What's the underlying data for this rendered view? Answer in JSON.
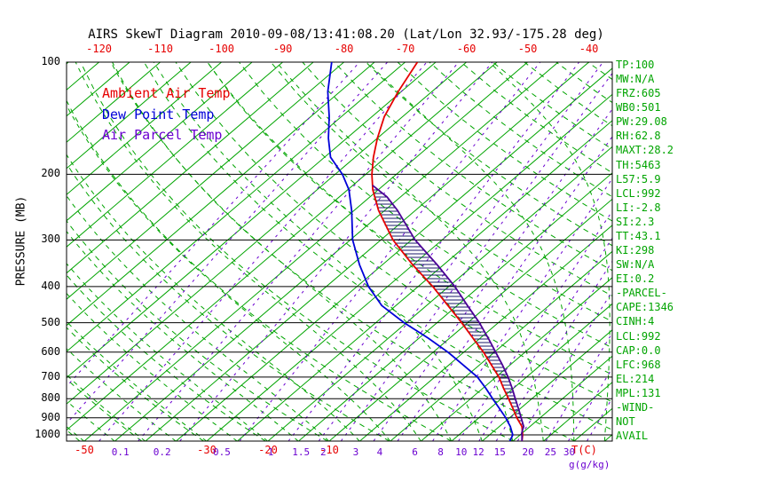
{
  "title": "AIRS SkewT Diagram 2010-09-08/13:41:08.20 (Lat/Lon 32.93/-175.28 deg)",
  "colors": {
    "grid_green": "#00a400",
    "temp_red": "#e60000",
    "dew_blue": "#0000d8",
    "parcel_purple": "#4b0096",
    "mixing_violet": "#6a00d0",
    "axis_black": "#000000",
    "hatch": "#181868"
  },
  "legend": [
    {
      "label": "Ambient Air Temp",
      "color": "#e60000"
    },
    {
      "label": "Dew Point Temp",
      "color": "#0000d8"
    },
    {
      "label": "Air Parcel Temp",
      "color": "#6a00d0"
    }
  ],
  "axes": {
    "pressure_axis_label": "PRESSURE (MB)",
    "pressure_ticks": [
      100,
      200,
      300,
      400,
      500,
      600,
      700,
      800,
      900,
      1000
    ],
    "top_temp_ticks": [
      -120,
      -110,
      -100,
      -90,
      -80,
      -70,
      -60,
      -50,
      -40
    ],
    "bottom_temp_ticks": [
      -50,
      -30,
      -20,
      -10
    ],
    "temp_unit_label": "T(C)",
    "mixing_ratio_tick_labels": [
      "0.1",
      "0.2",
      "0.5",
      "1",
      "1.5",
      "2",
      "3",
      "4",
      "6",
      "8",
      "10",
      "12",
      "15",
      "20",
      "25",
      "30"
    ],
    "mixing_ratio_unit_label": "g(g/kg)"
  },
  "stats_panel": [
    "TP:100",
    "MW:N/A",
    "FRZ:605",
    "WB0:501",
    "PW:29.08",
    "RH:62.8",
    "MAXT:28.2",
    "TH:5463",
    "L57:5.9",
    "LCL:992",
    "LI:-2.8",
    "SI:2.3",
    "TT:43.1",
    "KI:298",
    "SW:N/A",
    "EI:0.2",
    "-PARCEL-",
    "CAPE:1346",
    "CINH:4",
    "LCL:992",
    "CAP:0.0",
    "LFC:968",
    "EL:214",
    "MPL:131",
    "-WIND-",
    "NOT",
    "AVAIL"
  ],
  "chart_data": {
    "type": "line",
    "subtype": "skew-t-log-p",
    "title": "AIRS SkewT Diagram 2010-09-08/13:41:08.20 (Lat/Lon 32.93/-175.28 deg)",
    "xlabel": "T(C)",
    "ylabel": "PRESSURE (MB)",
    "pressure_range_mb": [
      100,
      1040
    ],
    "top_axis_temps_c": [
      -120,
      -40
    ],
    "isotherms_c": {
      "min": -150,
      "max": 40,
      "step": 5
    },
    "dry_adiabats_theta_k": {
      "min": 220,
      "max": 460,
      "step": 10
    },
    "moist_adiabats_surface_c": {
      "min": -50,
      "max": 35,
      "step": 5
    },
    "mixing_ratio_lines_g_kg": [
      0.01,
      0.02,
      0.05,
      0.1,
      0.2,
      0.5,
      1,
      1.5,
      2,
      3,
      4,
      6,
      8,
      10,
      12,
      15,
      20,
      25,
      30
    ],
    "cape_region": {
      "lfc_mb": 968,
      "el_mb": 214
    },
    "series": [
      {
        "name": "Ambient Air Temp",
        "color": "#e60000",
        "points": [
          [
            1040,
            21.5
          ],
          [
            1000,
            20.4
          ],
          [
            950,
            18.7
          ],
          [
            900,
            16.2
          ],
          [
            850,
            13.8
          ],
          [
            800,
            11.2
          ],
          [
            750,
            8.4
          ],
          [
            700,
            5.5
          ],
          [
            650,
            2.0
          ],
          [
            600,
            -1.8
          ],
          [
            550,
            -6.2
          ],
          [
            500,
            -11.0
          ],
          [
            450,
            -16.5
          ],
          [
            400,
            -22.6
          ],
          [
            350,
            -30.0
          ],
          [
            300,
            -38.0
          ],
          [
            250,
            -46.0
          ],
          [
            220,
            -50.9
          ],
          [
            200,
            -54.0
          ],
          [
            180,
            -57.0
          ],
          [
            160,
            -60.0
          ],
          [
            140,
            -63.0
          ],
          [
            120,
            -65.5
          ],
          [
            100,
            -68.0
          ]
        ]
      },
      {
        "name": "Dew Point Temp",
        "color": "#0000d8",
        "points": [
          [
            1040,
            19.5
          ],
          [
            1000,
            18.8
          ],
          [
            950,
            16.8
          ],
          [
            900,
            14.4
          ],
          [
            850,
            11.6
          ],
          [
            800,
            8.6
          ],
          [
            750,
            5.5
          ],
          [
            700,
            2.0
          ],
          [
            650,
            -2.6
          ],
          [
            600,
            -7.6
          ],
          [
            550,
            -13.5
          ],
          [
            500,
            -20.4
          ],
          [
            450,
            -27.3
          ],
          [
            400,
            -33.1
          ],
          [
            350,
            -38.7
          ],
          [
            300,
            -44.6
          ],
          [
            250,
            -50.4
          ],
          [
            220,
            -54.8
          ],
          [
            200,
            -58.8
          ],
          [
            180,
            -64.0
          ],
          [
            160,
            -68.0
          ],
          [
            140,
            -72.0
          ],
          [
            120,
            -77.0
          ],
          [
            100,
            -82.0
          ]
        ]
      },
      {
        "name": "Air Parcel Temp",
        "color": "#4b0096",
        "points": [
          [
            1040,
            21.5
          ],
          [
            1000,
            20.3
          ],
          [
            992,
            20.0
          ],
          [
            968,
            19.4
          ],
          [
            950,
            19.0
          ],
          [
            900,
            16.9
          ],
          [
            850,
            14.7
          ],
          [
            800,
            12.3
          ],
          [
            750,
            9.8
          ],
          [
            700,
            7.0
          ],
          [
            650,
            3.8
          ],
          [
            600,
            0.2
          ],
          [
            550,
            -3.7
          ],
          [
            500,
            -8.1
          ],
          [
            450,
            -13.3
          ],
          [
            400,
            -19.0
          ],
          [
            350,
            -26.0
          ],
          [
            300,
            -34.4
          ],
          [
            250,
            -42.9
          ],
          [
            230,
            -47.2
          ],
          [
            214,
            -51.8
          ]
        ]
      }
    ]
  }
}
